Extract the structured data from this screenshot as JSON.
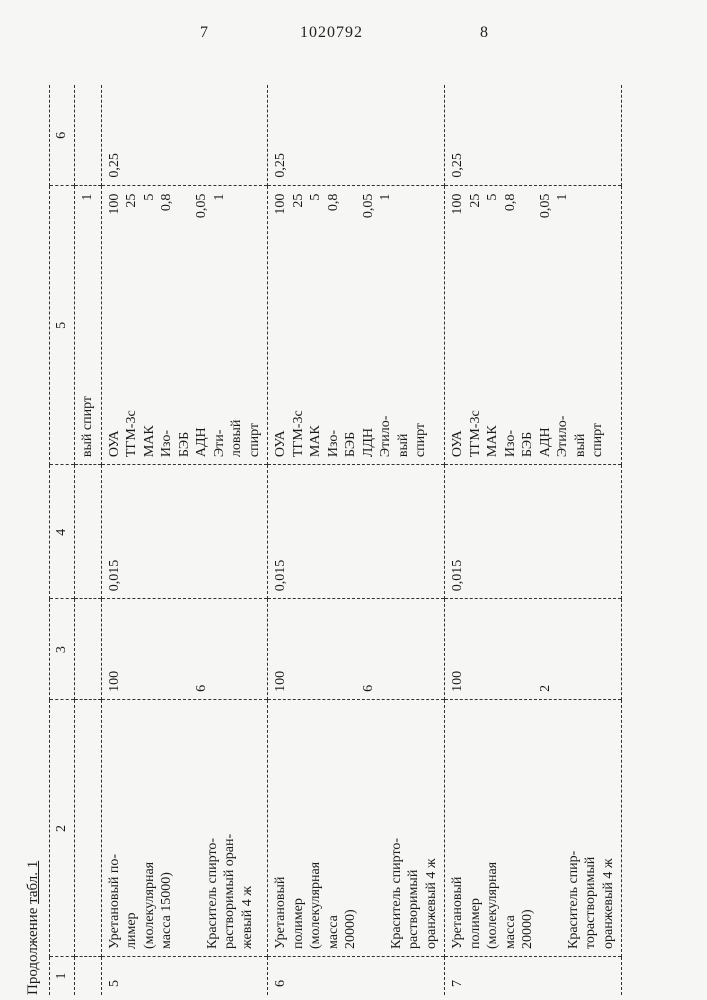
{
  "header": {
    "page_left": "7",
    "doc_no": "1020792",
    "page_right": "8"
  },
  "caption": {
    "text_a": "Продолжение ",
    "text_b": "табл. 1"
  },
  "columns": [
    "1",
    "2",
    "3",
    "4",
    "5",
    "6"
  ],
  "preline": {
    "label": "вый спирт",
    "value": "1"
  },
  "rows": [
    {
      "no": "5",
      "col2_main": "Уретановый по-\nлимер\n(молекулярная\nмасса 15000)",
      "col2_sub": "Краситель спирто-\nрастворимый оран-\nжевый 4 ж",
      "col3_main": "100",
      "col3_sub": "6",
      "col4": "0,015",
      "col5": [
        {
          "l": "ОУА",
          "v": "100"
        },
        {
          "l": "ТГМ-3с",
          "v": "25"
        },
        {
          "l": "МАК",
          "v": "5"
        },
        {
          "l": "Изо-\nБЭБ",
          "v": "0,8"
        },
        {
          "l": "АДН",
          "v": "0,05"
        },
        {
          "l": "Эти-\nловый\nспирт",
          "v": "1"
        }
      ],
      "col6": "0,25"
    },
    {
      "no": "6",
      "col2_main": "Уретановый\nполимер\n(молекулярная\nмасса\n20000)",
      "col2_sub": "Краситель спирто-\nрастворимый\nоранжевый 4 ж",
      "col3_main": "100",
      "col3_sub": "6",
      "col4": "0,015",
      "col5": [
        {
          "l": "ОУА",
          "v": "100"
        },
        {
          "l": "ТГМ-3с",
          "v": "25"
        },
        {
          "l": "МАК",
          "v": "5"
        },
        {
          "l": "Изо-\nБЭБ",
          "v": "0,8"
        },
        {
          "l": "ЛДН",
          "v": "0,05"
        },
        {
          "l": "Этило-\nвый\nспирт",
          "v": "1"
        }
      ],
      "col6": "0,25"
    },
    {
      "no": "7",
      "col2_main": "Уретановый\nполимер\n(молекулярная\nмасса\n20000)",
      "col2_sub": "Краситель спир-\nторастворимый\nоранжевый 4 ж",
      "col3_main": "100",
      "col3_sub": "2",
      "col4": "0,015",
      "col5": [
        {
          "l": "ОУА",
          "v": "100"
        },
        {
          "l": "ТГМ-3с",
          "v": "25"
        },
        {
          "l": "МАК",
          "v": "5"
        },
        {
          "l": "Изо-\nБЭБ",
          "v": "0,8"
        },
        {
          "l": "АДН",
          "v": "0,05"
        },
        {
          "l": "Этило-\nвый\nспирт",
          "v": "1"
        }
      ],
      "col6": "0,25"
    }
  ]
}
